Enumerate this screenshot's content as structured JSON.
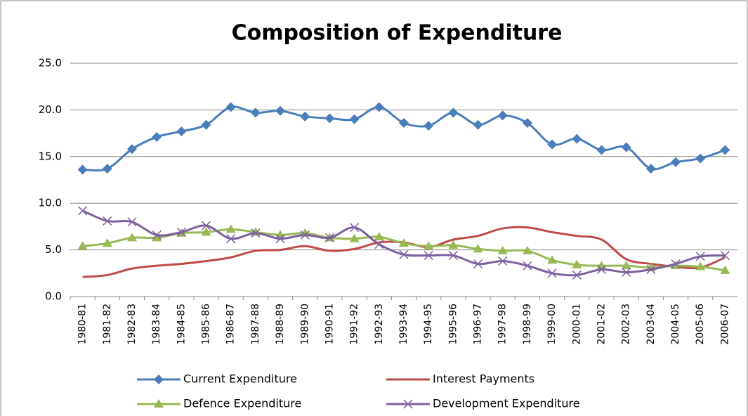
{
  "chart_data": {
    "type": "line",
    "title": "Composition of Expenditure",
    "categories": [
      "1980-81",
      "1981-82",
      "1982-83",
      "1983-84",
      "1984-85",
      "1985-86",
      "1986-87",
      "1987-88",
      "1988-89",
      "1989-90",
      "1990-91",
      "1991-92",
      "1992-93",
      "1993-94",
      "1994-95",
      "1995-96",
      "1996-97",
      "1997-98",
      "1998-99",
      "1999-00",
      "2000-01",
      "2001-02",
      "2002-03",
      "2003-04",
      "2004-05",
      "2005-06",
      "2006-07"
    ],
    "series": [
      {
        "name": "Current Expenditure",
        "color": "#4a7ebb",
        "marker": "diamond",
        "values": [
          13.6,
          13.7,
          15.8,
          17.1,
          17.7,
          18.4,
          20.3,
          19.7,
          19.9,
          19.3,
          19.1,
          19.0,
          20.3,
          18.6,
          18.3,
          19.7,
          18.4,
          19.4,
          18.6,
          16.3,
          16.9,
          15.7,
          16.0,
          13.7,
          14.4,
          14.8,
          15.7
        ]
      },
      {
        "name": "Interest Payments",
        "color": "#be4b48",
        "marker": "none",
        "values": [
          2.1,
          2.3,
          3.0,
          3.3,
          3.5,
          3.8,
          4.2,
          4.9,
          5.0,
          5.4,
          4.9,
          5.1,
          5.8,
          5.8,
          5.3,
          6.1,
          6.5,
          7.3,
          7.4,
          6.9,
          6.5,
          6.1,
          4.0,
          3.5,
          3.2,
          3.1,
          4.2
        ]
      },
      {
        "name": "Defence Expenditure",
        "color": "#98b954",
        "marker": "triangle",
        "values": [
          5.4,
          5.7,
          6.3,
          6.3,
          6.8,
          6.9,
          7.2,
          6.9,
          6.6,
          6.8,
          6.3,
          6.2,
          6.4,
          5.7,
          5.4,
          5.5,
          5.1,
          4.9,
          4.9,
          3.9,
          3.4,
          3.3,
          3.3,
          3.1,
          3.3,
          3.2,
          2.8
        ]
      },
      {
        "name": "Development Expenditure",
        "color": "#7d60a0",
        "marker": "x",
        "values": [
          9.2,
          8.1,
          8.0,
          6.6,
          6.9,
          7.6,
          6.2,
          6.8,
          6.2,
          6.6,
          6.3,
          7.4,
          5.6,
          4.5,
          4.4,
          4.4,
          3.5,
          3.8,
          3.3,
          2.5,
          2.3,
          2.9,
          2.6,
          2.9,
          3.5,
          4.3,
          4.4
        ]
      }
    ],
    "ylim": [
      0,
      25
    ],
    "yticks": [
      {
        "value": 0,
        "label": "0.0"
      },
      {
        "value": 5,
        "label": "5.0"
      },
      {
        "value": 10,
        "label": "10.0"
      },
      {
        "value": 15,
        "label": "15.0"
      },
      {
        "value": 20,
        "label": "20.0"
      },
      {
        "value": 25,
        "label": "25.0"
      }
    ],
    "grid": true,
    "legend": "bottom"
  }
}
